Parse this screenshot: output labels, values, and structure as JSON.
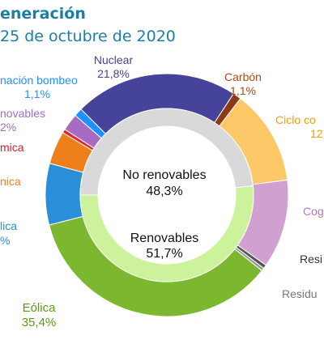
{
  "header": {
    "title": "eneración",
    "subtitle": "25 de octubre de 2020"
  },
  "chart_data": {
    "type": "pie",
    "variant": "nested-donut",
    "inner_ring": [
      {
        "name": "No renovables",
        "value": 48.3,
        "value_label": "48,3%",
        "color": "#d9d9d9"
      },
      {
        "name": "Renovables",
        "value": 51.7,
        "value_label": "51,7%",
        "color": "#ccf29b"
      }
    ],
    "outer_ring": [
      {
        "name": "Nuclear",
        "value": 21.8,
        "value_label": "21,8%",
        "color": "#46449a"
      },
      {
        "name": "Carbón",
        "value": 1.1,
        "value_label": "1,1%",
        "color": "#8b3a1a"
      },
      {
        "name": "Ciclo co",
        "value": 12.7,
        "value_label": "12,",
        "color": "#fdc867"
      },
      {
        "name": "Cog",
        "value": 11.8,
        "value_label": "",
        "color": "#cfa0d0"
      },
      {
        "name": "Resi",
        "value": 0.5,
        "value_label": "",
        "color": "#555555"
      },
      {
        "name": "Residu",
        "value": 0.4,
        "value_label": "",
        "color": "#9a9a9a"
      },
      {
        "name": "Eólica",
        "value": 35.4,
        "value_label": "35,4%",
        "color": "#7cb82f"
      },
      {
        "name": "lica",
        "value": 8.2,
        "value_label": "%",
        "color": "#2a8fd8"
      },
      {
        "name": "nica",
        "value": 4.4,
        "value_label": "",
        "color": "#ee7f1a"
      },
      {
        "name": "mica",
        "value": 0.5,
        "value_label": "",
        "color": "#e8232b"
      },
      {
        "name": "novables",
        "value": 2.3,
        "value_label": "2%",
        "color": "#a56cc1"
      },
      {
        "name": "nación bombeo",
        "value": 1.1,
        "value_label": "1,1%",
        "color": "#1e90ff"
      }
    ]
  }
}
